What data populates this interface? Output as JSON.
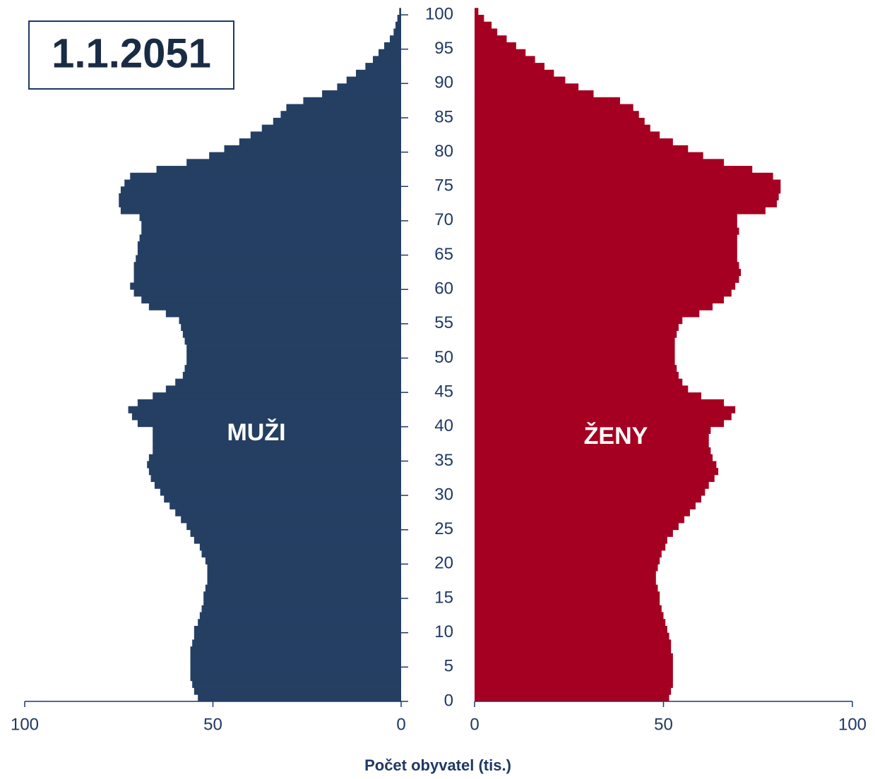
{
  "chart_data": {
    "type": "pyramid",
    "title": "1.1.2051",
    "x_label": "Počet obyvatel (tis.)",
    "categories": [
      0,
      null,
      null,
      null,
      null,
      5,
      null,
      null,
      null,
      null,
      10,
      null,
      null,
      null,
      null,
      15,
      null,
      null,
      null,
      null,
      20,
      null,
      null,
      null,
      null,
      25,
      null,
      null,
      null,
      null,
      30,
      null,
      null,
      null,
      null,
      35,
      null,
      null,
      null,
      null,
      40,
      null,
      null,
      null,
      null,
      45,
      null,
      null,
      null,
      null,
      50,
      null,
      null,
      null,
      null,
      55,
      null,
      null,
      null,
      null,
      60,
      null,
      null,
      null,
      null,
      65,
      null,
      null,
      null,
      null,
      70,
      null,
      null,
      null,
      null,
      75,
      null,
      null,
      null,
      null,
      80,
      null,
      null,
      null,
      null,
      85,
      null,
      null,
      null,
      null,
      90,
      null,
      null,
      null,
      null,
      95,
      null,
      null,
      null,
      null,
      100
    ],
    "xlim": [
      0,
      100
    ],
    "xticks": [
      0,
      50,
      100
    ],
    "series": [
      {
        "name": "MUŽI",
        "color": "#253f63",
        "values": [
          54,
          55,
          55.5,
          56,
          56,
          56,
          56,
          56,
          55.5,
          55,
          55,
          54,
          53.5,
          53,
          52.5,
          52.5,
          52,
          51.5,
          51.5,
          51.5,
          52,
          53,
          53.5,
          55,
          56,
          57,
          58.5,
          60,
          61.5,
          63,
          64,
          65.5,
          66.5,
          67,
          67.5,
          67,
          66,
          66,
          66,
          66,
          70,
          71.5,
          72.5,
          70,
          66,
          62.5,
          60,
          58,
          57.5,
          57,
          57,
          57,
          57.5,
          58,
          58.5,
          59,
          62.5,
          67,
          69,
          71,
          72,
          71,
          71,
          71,
          70.5,
          70,
          70,
          69.5,
          69,
          69,
          69.5,
          74.5,
          75,
          75,
          74.5,
          73.5,
          72,
          65,
          57,
          51,
          47,
          43,
          40,
          37,
          34,
          32,
          30.5,
          26,
          21,
          17,
          14.5,
          12,
          9.5,
          7.5,
          6,
          4.5,
          3,
          2,
          1.5,
          1,
          0.5
        ]
      },
      {
        "name": "ŽENY",
        "color": "#a50021",
        "values": [
          51.5,
          52,
          52.5,
          52.5,
          52.5,
          52.5,
          52.5,
          52,
          52,
          51.5,
          51,
          50.5,
          50,
          49.5,
          49,
          49,
          48.5,
          48,
          48,
          48.5,
          49,
          49.5,
          50.5,
          51,
          52.5,
          54,
          55.5,
          57,
          58.5,
          60,
          61,
          62,
          63.5,
          64.5,
          64,
          63,
          62.5,
          62,
          62,
          62.5,
          66,
          68,
          69,
          66,
          60,
          56.5,
          55,
          54,
          53.5,
          53,
          53,
          53,
          53,
          53.5,
          54,
          55,
          59.5,
          63,
          66,
          68,
          69,
          70,
          70.5,
          70,
          69.5,
          69.5,
          69.5,
          69.5,
          70,
          69.5,
          69.5,
          77,
          80,
          80.5,
          81,
          81,
          79,
          73.5,
          66,
          60.5,
          56.5,
          52.5,
          49,
          46.5,
          45,
          43.5,
          42,
          38.5,
          31.5,
          27.5,
          24,
          21,
          18.5,
          16,
          13.5,
          11,
          8.5,
          6,
          4.5,
          2.5,
          1
        ]
      }
    ]
  }
}
